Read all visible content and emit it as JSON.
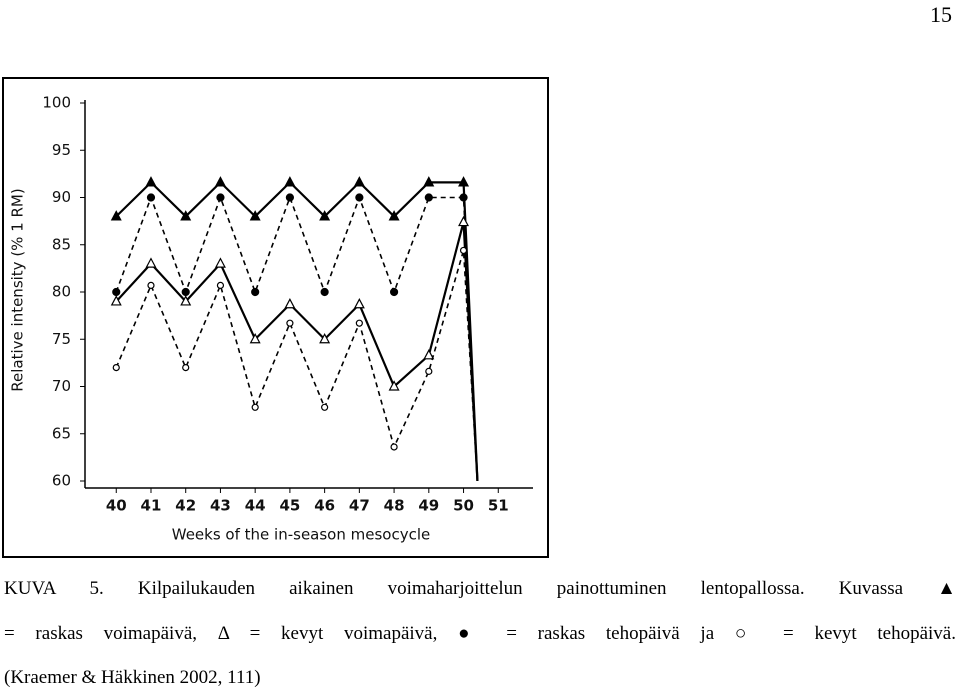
{
  "page_number": "15",
  "chart_data": {
    "type": "line",
    "ylabel": "Relative intensity (% 1 RM)",
    "xlabel": "Weeks of the in-season mesocycle",
    "xlim": [
      39.1,
      52
    ],
    "xticks": [
      40,
      41,
      42,
      43,
      44,
      45,
      46,
      47,
      48,
      49,
      50,
      51
    ],
    "ylim": [
      60,
      100
    ],
    "yticks": [
      60,
      65,
      70,
      75,
      80,
      85,
      90,
      95,
      100
    ],
    "series": [
      {
        "marker": "filled-triangle",
        "dashed": false,
        "color": "#000000",
        "x": [
          40,
          41,
          42,
          43,
          44,
          45,
          46,
          47,
          48,
          49,
          50,
          50.4
        ],
        "values": [
          88,
          91.6,
          88,
          91.6,
          88,
          91.6,
          88,
          91.6,
          88,
          91.6,
          91.6,
          60
        ]
      },
      {
        "marker": "filled-circle",
        "dashed": true,
        "color": "#000000",
        "x": [
          40,
          41,
          42,
          43,
          44,
          45,
          46,
          47,
          48,
          49,
          50,
          50.4
        ],
        "values": [
          80,
          90,
          80,
          90,
          80,
          90,
          80,
          90,
          80,
          90,
          90,
          60
        ]
      },
      {
        "marker": "open-triangle",
        "dashed": false,
        "color": "#000000",
        "x": [
          40,
          41,
          42,
          43,
          44,
          45,
          46,
          47,
          48,
          49,
          50,
          50.4
        ],
        "values": [
          79,
          83,
          79,
          83,
          75,
          78.7,
          75,
          78.7,
          70,
          73.3,
          87.4,
          60
        ]
      },
      {
        "marker": "open-circle",
        "dashed": true,
        "color": "#000000",
        "x": [
          40,
          41,
          42,
          43,
          44,
          45,
          46,
          47,
          48,
          49,
          50,
          50.4
        ],
        "values": [
          72,
          80.7,
          72,
          80.7,
          67.8,
          76.7,
          67.8,
          76.7,
          63.6,
          71.6,
          84.4,
          60
        ]
      }
    ]
  },
  "caption": [
    "KUVA 5. Kilpailukauden aikainen voimaharjoittelun painottuminen lentopallossa. Kuvassa ▲",
    "= raskas voimapäivä, Δ = kevyt voimapäivä, ● = raskas tehopäivä ja ○ = kevyt tehopäivä.",
    "(Kraemer & Häkkinen 2002, 111)"
  ]
}
